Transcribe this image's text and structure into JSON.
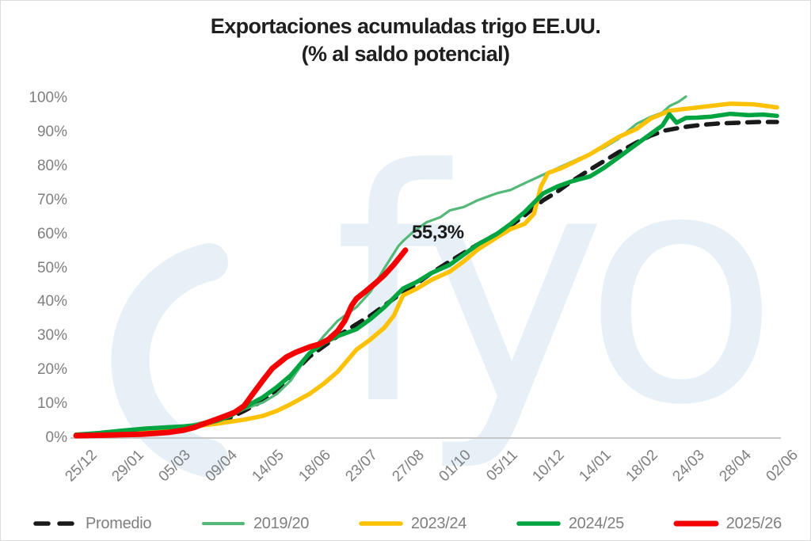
{
  "title": {
    "line1": "Exportaciones acumuladas trigo EE.UU.",
    "line2": "(% al saldo potencial)"
  },
  "watermark": {
    "text": "fyo",
    "color": "#e6f0f6"
  },
  "colors": {
    "axis_line": "#c0c0c0",
    "tick_label": "#7f7f7f",
    "title_text": "#1f1f1f",
    "annotation_text": "#1a1a1a"
  },
  "chart_data": {
    "type": "line",
    "title": "Exportaciones acumuladas trigo EE.UU. (% al saldo potencial)",
    "xlabel": "",
    "ylabel": "",
    "ylim": [
      0,
      100
    ],
    "grid": false,
    "legend_position": "bottom",
    "x_unit": "tick_index (weekly dates, dd/mm)",
    "x_tick_labels": [
      "25/12",
      "29/01",
      "05/03",
      "09/04",
      "14/05",
      "18/06",
      "23/07",
      "27/08",
      "01/10",
      "05/11",
      "10/12",
      "14/01",
      "18/02",
      "24/03",
      "28/04",
      "02/06"
    ],
    "y_tick_labels": [
      "0%",
      "10%",
      "20%",
      "30%",
      "40%",
      "50%",
      "60%",
      "70%",
      "80%",
      "90%",
      "100%"
    ],
    "annotation": {
      "text": "55,3%",
      "series": "2025/26",
      "value_pct": 55.3,
      "at_x_label": "27/08"
    },
    "series": [
      {
        "name": "Promedio",
        "color": "#1a1a1a",
        "style": "dashed",
        "width": 5.5,
        "points": [
          [
            0,
            0.8
          ],
          [
            0.5,
            1.0
          ],
          [
            1,
            1.5
          ],
          [
            1.5,
            2.0
          ],
          [
            2,
            2.6
          ],
          [
            2.5,
            3.4
          ],
          [
            3,
            4.8
          ],
          [
            3.3,
            6.0
          ],
          [
            3.6,
            8.0
          ],
          [
            4,
            11
          ],
          [
            4.3,
            14
          ],
          [
            4.6,
            18.5
          ],
          [
            5,
            24
          ],
          [
            5.3,
            27
          ],
          [
            5.6,
            30
          ],
          [
            6,
            33.5
          ],
          [
            6.3,
            36
          ],
          [
            6.6,
            39
          ],
          [
            7,
            43
          ],
          [
            7.3,
            45.5
          ],
          [
            7.6,
            48.5
          ],
          [
            8,
            52
          ],
          [
            8.3,
            54.5
          ],
          [
            8.6,
            57
          ],
          [
            9,
            60
          ],
          [
            9.3,
            62.5
          ],
          [
            9.6,
            65.5
          ],
          [
            10,
            70
          ],
          [
            10.3,
            72.5
          ],
          [
            10.6,
            75.5
          ],
          [
            11,
            79
          ],
          [
            11.3,
            81.5
          ],
          [
            11.6,
            84
          ],
          [
            12,
            87
          ],
          [
            12.3,
            89
          ],
          [
            12.6,
            90.5
          ],
          [
            13,
            91.5
          ],
          [
            13.4,
            92.2
          ],
          [
            13.8,
            92.6
          ],
          [
            14.2,
            92.8
          ],
          [
            14.6,
            93
          ],
          [
            15,
            93
          ]
        ]
      },
      {
        "name": "2019/20",
        "color": "#54b878",
        "style": "solid",
        "width": 3.2,
        "points": [
          [
            0,
            1
          ],
          [
            0.5,
            1.3
          ],
          [
            1,
            2
          ],
          [
            1.5,
            2.6
          ],
          [
            2,
            3.2
          ],
          [
            2.5,
            4
          ],
          [
            3,
            5.5
          ],
          [
            3.3,
            6.5
          ],
          [
            3.6,
            8.5
          ],
          [
            4,
            10.5
          ],
          [
            4.3,
            13
          ],
          [
            4.6,
            17
          ],
          [
            4.8,
            21
          ],
          [
            5,
            25
          ],
          [
            5.3,
            30
          ],
          [
            5.6,
            34.5
          ],
          [
            6,
            38.5
          ],
          [
            6.3,
            43
          ],
          [
            6.6,
            50
          ],
          [
            6.9,
            56.5
          ],
          [
            7,
            58
          ],
          [
            7.2,
            60.5
          ],
          [
            7.5,
            63.5
          ],
          [
            7.8,
            65
          ],
          [
            8,
            67
          ],
          [
            8.3,
            68
          ],
          [
            8.6,
            70
          ],
          [
            9,
            72
          ],
          [
            9.3,
            73
          ],
          [
            9.6,
            75
          ],
          [
            10,
            77.5
          ],
          [
            10.4,
            80
          ],
          [
            10.8,
            82.5
          ],
          [
            11,
            83.5
          ],
          [
            11.3,
            85.5
          ],
          [
            11.6,
            88
          ],
          [
            12,
            92.5
          ],
          [
            12.3,
            94.5
          ],
          [
            12.55,
            95.8
          ],
          [
            12.7,
            97.7
          ],
          [
            12.9,
            99
          ],
          [
            13.05,
            100.5
          ]
        ]
      },
      {
        "name": "2023/24",
        "color": "#fdc106",
        "style": "solid",
        "width": 5.5,
        "points": [
          [
            0,
            1
          ],
          [
            0.5,
            1.2
          ],
          [
            1,
            1.6
          ],
          [
            1.5,
            2.2
          ],
          [
            2,
            2.8
          ],
          [
            2.5,
            3.4
          ],
          [
            3,
            4.2
          ],
          [
            3.3,
            4.8
          ],
          [
            3.6,
            5.4
          ],
          [
            4,
            6.5
          ],
          [
            4.3,
            8
          ],
          [
            4.6,
            10
          ],
          [
            5,
            13
          ],
          [
            5.3,
            16
          ],
          [
            5.6,
            19.5
          ],
          [
            6,
            26
          ],
          [
            6.3,
            29
          ],
          [
            6.6,
            32.5
          ],
          [
            6.8,
            36
          ],
          [
            7,
            42
          ],
          [
            7.3,
            44
          ],
          [
            7.6,
            46.5
          ],
          [
            8,
            49
          ],
          [
            8.3,
            52
          ],
          [
            8.6,
            55.5
          ],
          [
            9,
            59
          ],
          [
            9.3,
            61.5
          ],
          [
            9.6,
            63
          ],
          [
            9.8,
            66
          ],
          [
            9.95,
            74
          ],
          [
            10.1,
            78
          ],
          [
            10.4,
            79.5
          ],
          [
            10.7,
            81.5
          ],
          [
            11,
            83.5
          ],
          [
            11.3,
            86
          ],
          [
            11.6,
            88.5
          ],
          [
            12,
            91
          ],
          [
            12.3,
            94
          ],
          [
            12.7,
            96.3
          ],
          [
            13,
            96.8
          ],
          [
            13.5,
            97.6
          ],
          [
            14,
            98.4
          ],
          [
            14.5,
            98.2
          ],
          [
            15,
            97.3
          ]
        ]
      },
      {
        "name": "2024/25",
        "color": "#00a440",
        "style": "solid",
        "width": 5.5,
        "points": [
          [
            0,
            1
          ],
          [
            0.5,
            1.5
          ],
          [
            1,
            2.2
          ],
          [
            1.5,
            2.8
          ],
          [
            2,
            3.2
          ],
          [
            2.3,
            3.4
          ],
          [
            2.6,
            3.7
          ],
          [
            3,
            5
          ],
          [
            3.3,
            6.5
          ],
          [
            3.6,
            9
          ],
          [
            4,
            12
          ],
          [
            4.3,
            15
          ],
          [
            4.6,
            18.5
          ],
          [
            5,
            25
          ],
          [
            5.3,
            28
          ],
          [
            5.6,
            30
          ],
          [
            6,
            32
          ],
          [
            6.3,
            35
          ],
          [
            6.6,
            38.5
          ],
          [
            7,
            44
          ],
          [
            7.3,
            46
          ],
          [
            7.6,
            48.5
          ],
          [
            8,
            51
          ],
          [
            8.3,
            54
          ],
          [
            8.6,
            57
          ],
          [
            9,
            60
          ],
          [
            9.3,
            63
          ],
          [
            9.6,
            66.5
          ],
          [
            10,
            72
          ],
          [
            10.3,
            74
          ],
          [
            10.6,
            75.5
          ],
          [
            11,
            77
          ],
          [
            11.3,
            79.5
          ],
          [
            11.6,
            82.5
          ],
          [
            12,
            86.5
          ],
          [
            12.3,
            89.5
          ],
          [
            12.55,
            92
          ],
          [
            12.7,
            95.3
          ],
          [
            12.85,
            92.8
          ],
          [
            13.05,
            94.2
          ],
          [
            13.3,
            94.3
          ],
          [
            13.6,
            94.6
          ],
          [
            14,
            95.4
          ],
          [
            14.4,
            95
          ],
          [
            14.7,
            95.2
          ],
          [
            15,
            94.8
          ]
        ]
      },
      {
        "name": "2025/26",
        "color": "#f40000",
        "style": "solid",
        "width": 7,
        "points": [
          [
            0,
            0.7
          ],
          [
            0.4,
            0.8
          ],
          [
            0.8,
            0.9
          ],
          [
            1,
            1
          ],
          [
            1.4,
            1.1
          ],
          [
            1.8,
            1.5
          ],
          [
            2,
            1.7
          ],
          [
            2.3,
            2.3
          ],
          [
            2.55,
            3.2
          ],
          [
            2.7,
            4
          ],
          [
            3,
            5.5
          ],
          [
            3.2,
            6.5
          ],
          [
            3.4,
            7.6
          ],
          [
            3.6,
            9.5
          ],
          [
            3.8,
            13.3
          ],
          [
            4,
            17
          ],
          [
            4.2,
            20.5
          ],
          [
            4.5,
            23.8
          ],
          [
            4.7,
            25.2
          ],
          [
            5,
            26.8
          ],
          [
            5.2,
            27.6
          ],
          [
            5.4,
            29
          ],
          [
            5.6,
            31.5
          ],
          [
            5.75,
            34.5
          ],
          [
            5.9,
            39
          ],
          [
            6,
            41
          ],
          [
            6.2,
            43.2
          ],
          [
            6.4,
            45.5
          ],
          [
            6.6,
            48
          ],
          [
            6.8,
            51
          ],
          [
            7.05,
            55.3
          ]
        ]
      }
    ]
  },
  "legend": {
    "items": [
      "Promedio",
      "2019/20",
      "2023/24",
      "2024/25",
      "2025/26"
    ]
  }
}
